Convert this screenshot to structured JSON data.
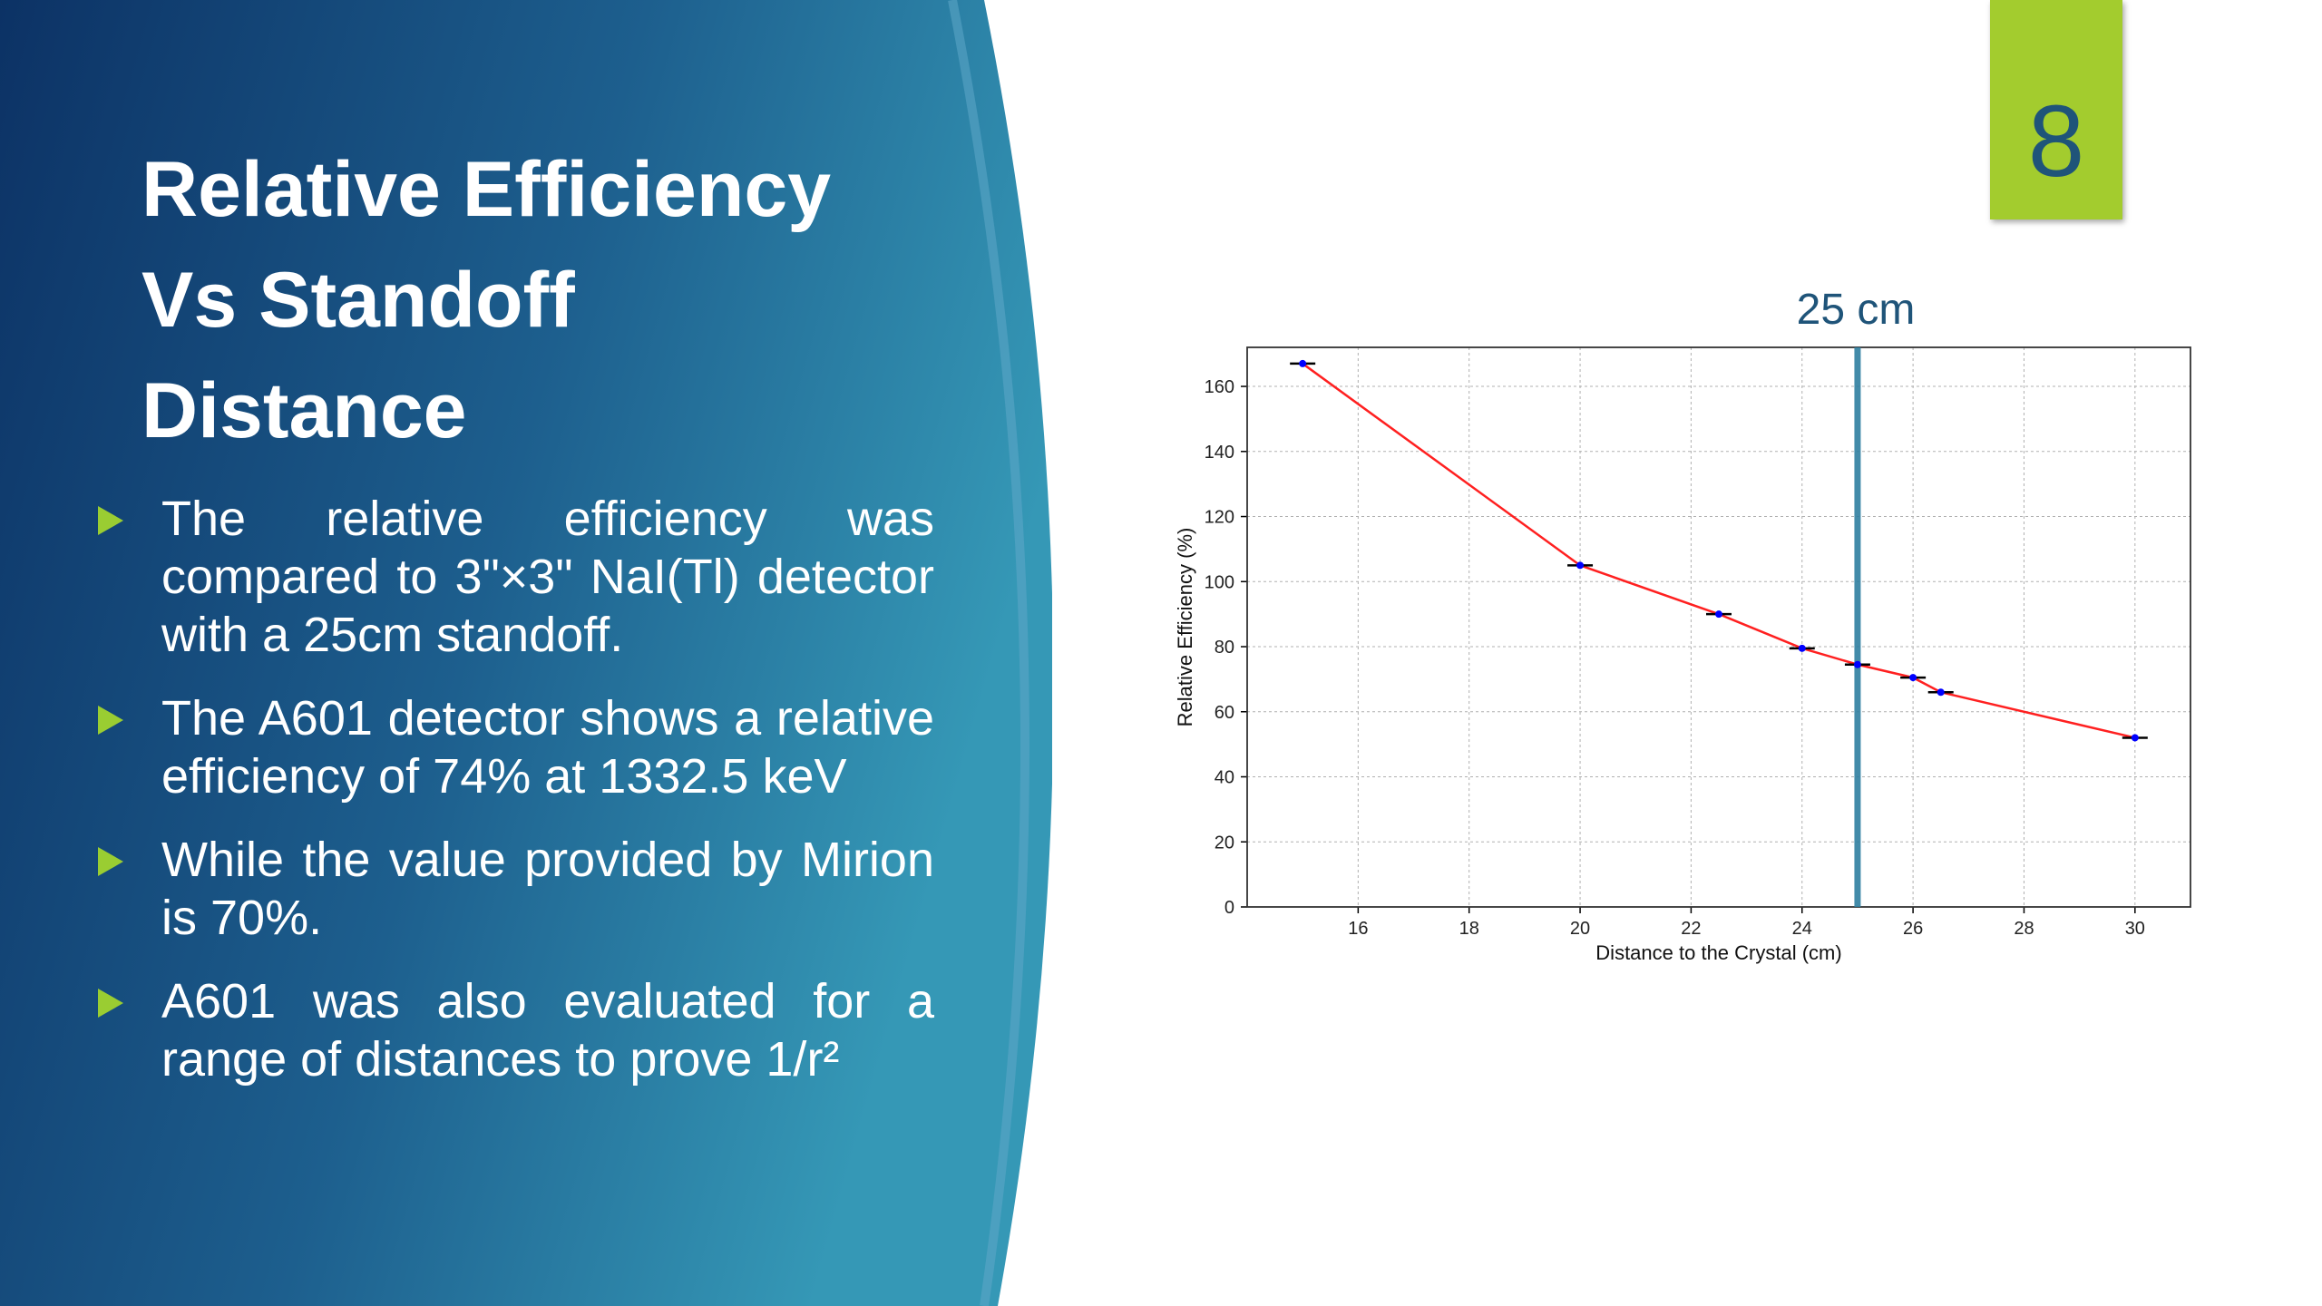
{
  "slide": {
    "number": "8",
    "title_lines": [
      "Relative Efficiency",
      "Vs Standoff",
      "Distance"
    ],
    "bullets": [
      "The relative efficiency was compared to 3\"×3\" NaI(Tl) detector with a 25cm standoff.",
      "The A601 detector shows a relative efficiency of 74% at 1332.5 keV",
      "While the value provided by Mirion is 70%.",
      "A601 was also evaluated for a range of distances to prove 1/r²"
    ],
    "marker_label": "25 cm"
  },
  "colors": {
    "panel_dark": "#0c3265",
    "panel_light": "#3598b6",
    "accent_green": "#9acd32",
    "badge_green": "#a3cc2e",
    "badge_text": "#1f5479",
    "line_red": "#ff2020",
    "point_blue": "#0000ff",
    "marker_line": "#2f7fa0"
  },
  "chart_data": {
    "type": "line",
    "xlabel": "Distance to the Crystal (cm)",
    "ylabel": "Relative Efficiency (%)",
    "xlim": [
      14,
      31
    ],
    "ylim": [
      0,
      172
    ],
    "xticks": [
      16,
      18,
      20,
      22,
      24,
      26,
      28,
      30
    ],
    "yticks": [
      0,
      20,
      40,
      60,
      80,
      100,
      120,
      140,
      160
    ],
    "grid": true,
    "x": [
      15,
      20,
      22.5,
      24,
      25,
      26,
      26.5,
      30
    ],
    "y": [
      167,
      105,
      90,
      79.5,
      74.5,
      70.5,
      66,
      52
    ],
    "vertical_marker_x": 25
  }
}
